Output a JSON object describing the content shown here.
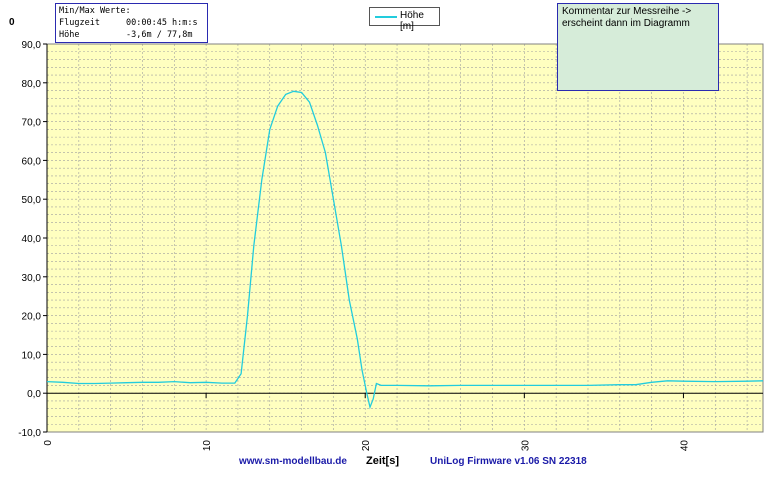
{
  "top_left_mark": "0",
  "info_box": {
    "heading": "Min/Max Werte:",
    "rows": [
      {
        "label": "Flugzeit",
        "value": "00:00:45 h:m:s"
      },
      {
        "label": "Höhe",
        "value": "-3,6m / 77,8m"
      }
    ]
  },
  "comment": {
    "line1": "Kommentar zur Messreihe ->",
    "line2": "erscheint dann im Diagramm"
  },
  "footer": {
    "website": "www.sm-modellbau.de",
    "firmware": "UniLog Firmware v1.06 SN 22318"
  },
  "colors": {
    "plot_background": "#ffffc0",
    "series_line": "#22ccdd",
    "grid": "#a0a0a0",
    "axis": "#000000"
  },
  "chart_data": {
    "type": "line",
    "xlabel": "Zeit[s]",
    "ylabel": "",
    "xlim": [
      0,
      45
    ],
    "ylim": [
      -10,
      90
    ],
    "x_ticks": [
      0,
      10,
      20,
      30,
      40
    ],
    "x_tick_labels": [
      "0",
      "10",
      "20",
      "30",
      "40"
    ],
    "y_ticks": [
      -10,
      0,
      10,
      20,
      30,
      40,
      50,
      60,
      70,
      80,
      90
    ],
    "y_tick_labels": [
      "-10,0",
      "0,0",
      "10,0",
      "20,0",
      "30,0",
      "40,0",
      "50,0",
      "60,0",
      "70,0",
      "80,0",
      "90,0"
    ],
    "grid": true,
    "legend_position": "top-center",
    "series": [
      {
        "name": "Höhe [m]",
        "x": [
          0,
          1,
          2,
          3,
          4,
          5,
          6,
          7,
          8,
          9,
          10,
          11,
          11.8,
          12.2,
          12.6,
          13,
          13.5,
          14,
          14.5,
          15,
          15.5,
          16,
          16.5,
          17,
          17.5,
          18,
          18.5,
          19,
          19.5,
          19.8,
          20.1,
          20.3,
          20.5,
          20.7,
          21,
          22,
          24,
          26,
          28,
          30,
          32,
          34,
          36,
          37,
          38,
          39,
          40,
          42,
          44,
          45
        ],
        "y": [
          3.0,
          2.8,
          2.5,
          2.5,
          2.6,
          2.7,
          2.8,
          2.8,
          3.0,
          2.7,
          2.8,
          2.6,
          2.6,
          5.0,
          20,
          38,
          55,
          68,
          74,
          77,
          77.8,
          77.5,
          75,
          69,
          62,
          50,
          38,
          24,
          14,
          6,
          0,
          -3.6,
          -1.5,
          2.5,
          2.0,
          2.0,
          1.9,
          2.0,
          2.0,
          2.0,
          2.0,
          2.0,
          2.2,
          2.2,
          2.8,
          3.2,
          3.1,
          3.0,
          3.1,
          3.2
        ]
      }
    ]
  }
}
